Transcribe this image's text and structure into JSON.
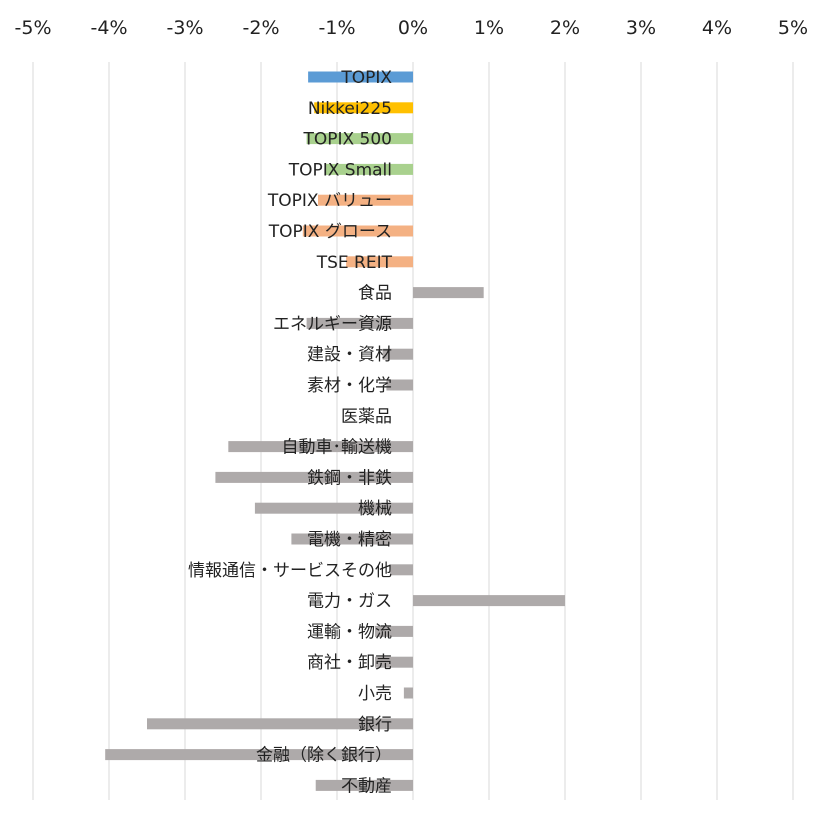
{
  "chart_data": {
    "type": "bar",
    "orientation": "horizontal",
    "title": "",
    "xlabel": "",
    "ylabel": "",
    "xlim": [
      -5,
      5
    ],
    "x_ticks": [
      "-5%",
      "-4%",
      "-3%",
      "-2%",
      "-1%",
      "0%",
      "1%",
      "2%",
      "3%",
      "4%",
      "5%"
    ],
    "x_axis_position": "top",
    "grid": true,
    "legend": "none",
    "colors": {
      "blue": "#5b9bd5",
      "gold": "#ffc000",
      "green": "#a9d18e",
      "orange": "#f4b183",
      "gray": "#aeaaaa",
      "grid": "#d9d9d9"
    },
    "categories": [
      {
        "label": "TOPIX",
        "value": -1.38,
        "color": "#5b9bd5"
      },
      {
        "label": "Nikkei225",
        "value": -1.3,
        "color": "#ffc000"
      },
      {
        "label": "TOPIX 500",
        "value": -1.4,
        "color": "#a9d18e"
      },
      {
        "label": "TOPIX Small",
        "value": -1.15,
        "color": "#a9d18e"
      },
      {
        "label": "TOPIX バリュー",
        "value": -1.25,
        "color": "#f4b183"
      },
      {
        "label": "TOPIX グロース",
        "value": -1.45,
        "color": "#f4b183"
      },
      {
        "label": "TSE REIT",
        "value": -0.88,
        "color": "#f4b183"
      },
      {
        "label": "食品",
        "value": 0.93,
        "color": "#aeaaaa"
      },
      {
        "label": "エネルギー資源",
        "value": -1.4,
        "color": "#aeaaaa"
      },
      {
        "label": "建設・資材",
        "value": -0.4,
        "color": "#aeaaaa"
      },
      {
        "label": "素材・化学",
        "value": -0.35,
        "color": "#aeaaaa"
      },
      {
        "label": "医薬品",
        "value": 0.0,
        "color": "#aeaaaa"
      },
      {
        "label": "自動車･輸送機",
        "value": -2.43,
        "color": "#aeaaaa"
      },
      {
        "label": "鉄鋼・非鉄",
        "value": -2.6,
        "color": "#aeaaaa"
      },
      {
        "label": "機械",
        "value": -2.08,
        "color": "#aeaaaa"
      },
      {
        "label": "電機・精密",
        "value": -1.6,
        "color": "#aeaaaa"
      },
      {
        "label": "情報通信・サービスその他",
        "value": -0.3,
        "color": "#aeaaaa"
      },
      {
        "label": "電力・ガス",
        "value": 2.0,
        "color": "#aeaaaa"
      },
      {
        "label": "運輸・物流",
        "value": -0.5,
        "color": "#aeaaaa"
      },
      {
        "label": "商社・卸売",
        "value": -0.5,
        "color": "#aeaaaa"
      },
      {
        "label": "小売",
        "value": -0.12,
        "color": "#aeaaaa"
      },
      {
        "label": "銀行",
        "value": -3.5,
        "color": "#aeaaaa"
      },
      {
        "label": "金融（除く銀行）",
        "value": -4.05,
        "color": "#aeaaaa"
      },
      {
        "label": "不動産",
        "value": -1.28,
        "color": "#aeaaaa"
      }
    ]
  }
}
